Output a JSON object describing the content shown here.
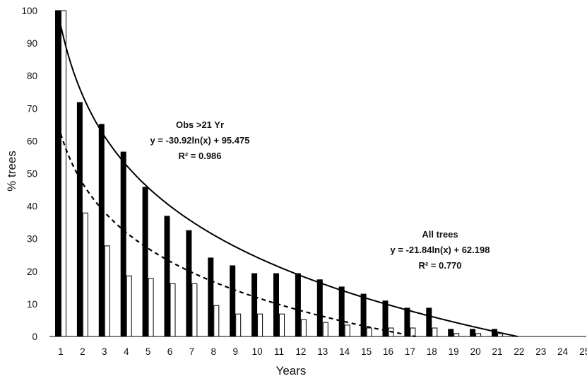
{
  "chart_data": {
    "type": "bar",
    "xlabel": "Years",
    "ylabel": "% trees",
    "ylim": [
      0,
      100
    ],
    "yticks": [
      "0",
      "10",
      "20",
      "30",
      "40",
      "50",
      "60",
      "70",
      "80",
      "90",
      "100"
    ],
    "categories": [
      "1",
      "2",
      "3",
      "4",
      "5",
      "6",
      "7",
      "8",
      "9",
      "10",
      "11",
      "12",
      "13",
      "14",
      "15",
      "16",
      "17",
      "18",
      "19",
      "20",
      "21",
      "22",
      "23",
      "24",
      "25"
    ],
    "grid": false,
    "series": [
      {
        "color": "#000000",
        "values": [
          100,
          71.8,
          65.1,
          56.6,
          45.8,
          36.9,
          32.5,
          24.1,
          21.7,
          19.3,
          19.3,
          19.3,
          17.4,
          15.2,
          13.0,
          10.9,
          8.7,
          8.7,
          2.2,
          2.2,
          2.2,
          null,
          null,
          null,
          null
        ]
      },
      {
        "color": "#ffffff",
        "values": [
          100,
          37.9,
          27.8,
          18.6,
          17.8,
          16.2,
          16.2,
          9.5,
          6.9,
          6.9,
          6.9,
          5.2,
          4.3,
          3.5,
          2.6,
          2.6,
          2.6,
          2.6,
          0.9,
          0.9,
          0.9,
          null,
          null,
          null,
          null
        ]
      }
    ],
    "trendlines": [
      {
        "style": "solid",
        "a": -30.92,
        "b": 95.475,
        "label_lines": [
          "Obs >21 Yr",
          "y = -30.92ln(x) + 95.475",
          "R² = 0.986"
        ]
      },
      {
        "style": "dashed",
        "a": -21.84,
        "b": 62.198,
        "label_lines": [
          "All trees",
          "y = -21.84ln(x) + 62.198",
          "R² = 0.770"
        ]
      }
    ]
  }
}
